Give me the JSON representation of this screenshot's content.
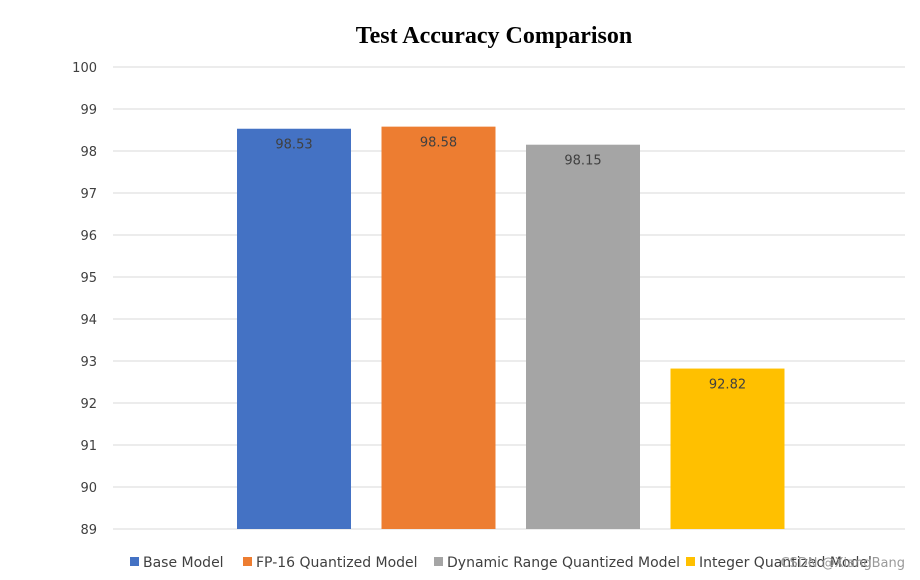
{
  "chart_data": {
    "type": "bar",
    "title": "Test Accuracy Comparison",
    "xlabel": "",
    "ylabel": "",
    "ylim": [
      89,
      100
    ],
    "yticks": [
      89,
      90,
      91,
      92,
      93,
      94,
      95,
      96,
      97,
      98,
      99,
      100
    ],
    "grid": true,
    "legend_position": "bottom",
    "series": [
      {
        "name": "Base Model",
        "value": 98.53,
        "label": "98.53",
        "color": "#4472C4"
      },
      {
        "name": "FP-16 Quantized Model",
        "value": 98.58,
        "label": "98.58",
        "color": "#ED7D31"
      },
      {
        "name": "Dynamic Range Quantized Model",
        "value": 98.15,
        "label": "98.15",
        "color": "#A5A5A5"
      },
      {
        "name": "Integer Quantized Model",
        "value": 92.82,
        "label": "92.82",
        "color": "#FFC000"
      }
    ]
  },
  "watermark": "CSDN @XiangBang"
}
